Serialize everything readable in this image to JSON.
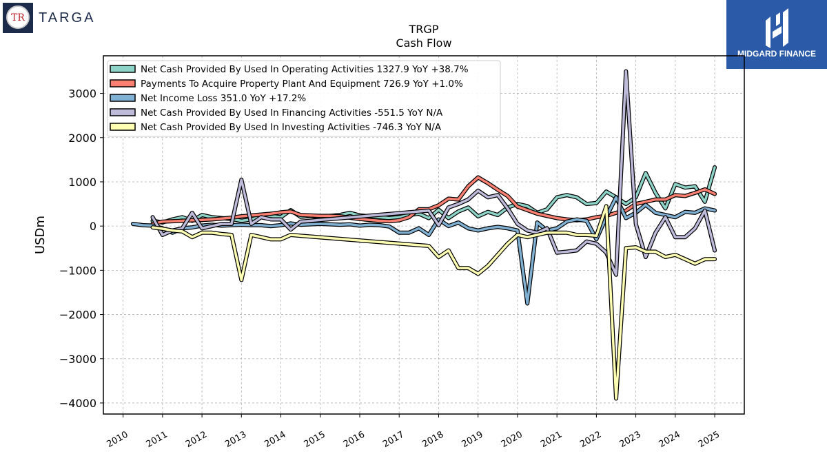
{
  "brand_left": {
    "name": "TARGA",
    "monogram": "TR"
  },
  "brand_right": {
    "name": "MIDGARD FINANCE"
  },
  "chart_data": {
    "type": "line",
    "title": "TRGP",
    "subtitle": "Cash Flow",
    "ylabel": "USDm",
    "xlabel": "",
    "xlim": [
      2009.5,
      2025.75
    ],
    "ylim": [
      -4250,
      3850
    ],
    "yticks": [
      -4000,
      -3000,
      -2000,
      -1000,
      0,
      1000,
      2000,
      3000
    ],
    "ytick_labels": [
      "−4000",
      "−3000",
      "−2000",
      "−1000",
      "0",
      "1000",
      "2000",
      "3000"
    ],
    "xticks": [
      2010,
      2011,
      2012,
      2013,
      2014,
      2015,
      2016,
      2017,
      2018,
      2019,
      2020,
      2021,
      2022,
      2023,
      2024,
      2025
    ],
    "xtick_labels": [
      "2010",
      "2011",
      "2012",
      "2013",
      "2014",
      "2015",
      "2016",
      "2017",
      "2018",
      "2019",
      "2020",
      "2021",
      "2022",
      "2023",
      "2024",
      "2025"
    ],
    "grid": true,
    "legend_position": "top-left",
    "series": [
      {
        "name": "Net Cash Provided By Used In Operating Activities",
        "legend": "Net Cash Provided By Used In Operating Activities  1327.9 YoY +38.7%",
        "color": "#8dd3c7",
        "points": [
          [
            2010.75,
            120
          ],
          [
            2011.0,
            80
          ],
          [
            2011.25,
            150
          ],
          [
            2011.5,
            200
          ],
          [
            2011.75,
            120
          ],
          [
            2012.0,
            250
          ],
          [
            2012.25,
            200
          ],
          [
            2012.5,
            180
          ],
          [
            2012.75,
            160
          ],
          [
            2013.0,
            120
          ],
          [
            2013.25,
            150
          ],
          [
            2013.5,
            210
          ],
          [
            2013.75,
            230
          ],
          [
            2014.0,
            200
          ],
          [
            2014.25,
            360
          ],
          [
            2014.5,
            210
          ],
          [
            2014.75,
            230
          ],
          [
            2015.0,
            200
          ],
          [
            2015.25,
            230
          ],
          [
            2015.5,
            250
          ],
          [
            2015.75,
            300
          ],
          [
            2016.0,
            240
          ],
          [
            2016.25,
            220
          ],
          [
            2016.5,
            200
          ],
          [
            2016.75,
            180
          ],
          [
            2017.0,
            200
          ],
          [
            2017.25,
            250
          ],
          [
            2017.5,
            280
          ],
          [
            2017.75,
            180
          ],
          [
            2018.0,
            370
          ],
          [
            2018.25,
            180
          ],
          [
            2018.5,
            330
          ],
          [
            2018.75,
            420
          ],
          [
            2019.0,
            220
          ],
          [
            2019.25,
            320
          ],
          [
            2019.5,
            250
          ],
          [
            2019.75,
            420
          ],
          [
            2020.0,
            500
          ],
          [
            2020.25,
            450
          ],
          [
            2020.5,
            300
          ],
          [
            2020.75,
            380
          ],
          [
            2021.0,
            650
          ],
          [
            2021.25,
            700
          ],
          [
            2021.5,
            650
          ],
          [
            2021.75,
            500
          ],
          [
            2022.0,
            520
          ],
          [
            2022.25,
            780
          ],
          [
            2022.5,
            650
          ],
          [
            2022.75,
            500
          ],
          [
            2023.0,
            650
          ],
          [
            2023.25,
            1200
          ],
          [
            2023.5,
            750
          ],
          [
            2023.75,
            400
          ],
          [
            2024.0,
            950
          ],
          [
            2024.25,
            870
          ],
          [
            2024.5,
            900
          ],
          [
            2024.75,
            550
          ],
          [
            2025.0,
            1328
          ]
        ]
      },
      {
        "name": "Payments To Acquire Property Plant And Equipment",
        "legend": "Payments To Acquire Property Plant And Equipment  726.9 YoY +1.0%",
        "color": "#fb8072",
        "points": [
          [
            2010.75,
            50
          ],
          [
            2011.0,
            100
          ],
          [
            2011.25,
            110
          ],
          [
            2011.5,
            120
          ],
          [
            2011.75,
            130
          ],
          [
            2012.0,
            140
          ],
          [
            2012.25,
            150
          ],
          [
            2012.5,
            170
          ],
          [
            2012.75,
            190
          ],
          [
            2013.0,
            220
          ],
          [
            2013.25,
            240
          ],
          [
            2013.5,
            260
          ],
          [
            2013.75,
            280
          ],
          [
            2014.0,
            310
          ],
          [
            2014.25,
            330
          ],
          [
            2014.5,
            250
          ],
          [
            2014.75,
            240
          ],
          [
            2015.0,
            230
          ],
          [
            2015.25,
            230
          ],
          [
            2015.5,
            220
          ],
          [
            2015.75,
            190
          ],
          [
            2016.0,
            160
          ],
          [
            2016.25,
            140
          ],
          [
            2016.5,
            120
          ],
          [
            2016.75,
            110
          ],
          [
            2017.0,
            130
          ],
          [
            2017.25,
            200
          ],
          [
            2017.5,
            380
          ],
          [
            2017.75,
            380
          ],
          [
            2018.0,
            470
          ],
          [
            2018.25,
            620
          ],
          [
            2018.5,
            600
          ],
          [
            2018.75,
            900
          ],
          [
            2019.0,
            1100
          ],
          [
            2019.25,
            970
          ],
          [
            2019.5,
            820
          ],
          [
            2019.75,
            680
          ],
          [
            2020.0,
            440
          ],
          [
            2020.25,
            360
          ],
          [
            2020.5,
            280
          ],
          [
            2020.75,
            230
          ],
          [
            2021.0,
            180
          ],
          [
            2021.25,
            150
          ],
          [
            2021.5,
            130
          ],
          [
            2021.75,
            150
          ],
          [
            2022.0,
            200
          ],
          [
            2022.25,
            230
          ],
          [
            2022.5,
            300
          ],
          [
            2022.75,
            350
          ],
          [
            2023.0,
            500
          ],
          [
            2023.25,
            550
          ],
          [
            2023.5,
            600
          ],
          [
            2023.75,
            600
          ],
          [
            2024.0,
            700
          ],
          [
            2024.25,
            680
          ],
          [
            2024.5,
            750
          ],
          [
            2024.75,
            830
          ],
          [
            2025.0,
            727
          ]
        ]
      },
      {
        "name": "Net Income Loss",
        "legend": "Net Income Loss  351.0 YoY +17.2%",
        "color": "#80b1d3",
        "points": [
          [
            2010.25,
            50
          ],
          [
            2010.5,
            20
          ],
          [
            2010.75,
            10
          ],
          [
            2011.0,
            -50
          ],
          [
            2011.25,
            -150
          ],
          [
            2011.5,
            -50
          ],
          [
            2011.75,
            -30
          ],
          [
            2012.0,
            10
          ],
          [
            2012.25,
            30
          ],
          [
            2012.5,
            10
          ],
          [
            2012.75,
            20
          ],
          [
            2013.0,
            30
          ],
          [
            2013.25,
            20
          ],
          [
            2013.5,
            20
          ],
          [
            2013.75,
            0
          ],
          [
            2014.0,
            20
          ],
          [
            2014.25,
            60
          ],
          [
            2014.5,
            30
          ],
          [
            2014.75,
            40
          ],
          [
            2015.0,
            50
          ],
          [
            2015.25,
            40
          ],
          [
            2015.5,
            30
          ],
          [
            2015.75,
            40
          ],
          [
            2016.0,
            10
          ],
          [
            2016.25,
            30
          ],
          [
            2016.5,
            20
          ],
          [
            2016.75,
            -10
          ],
          [
            2017.0,
            -150
          ],
          [
            2017.25,
            -150
          ],
          [
            2017.5,
            -50
          ],
          [
            2017.75,
            -200
          ],
          [
            2018.0,
            150
          ],
          [
            2018.25,
            0
          ],
          [
            2018.5,
            80
          ],
          [
            2018.75,
            -50
          ],
          [
            2019.0,
            -100
          ],
          [
            2019.25,
            -50
          ],
          [
            2019.5,
            -20
          ],
          [
            2019.75,
            -50
          ],
          [
            2020.0,
            -100
          ],
          [
            2020.25,
            -1750
          ],
          [
            2020.5,
            80
          ],
          [
            2020.75,
            -100
          ],
          [
            2021.0,
            -50
          ],
          [
            2021.25,
            100
          ],
          [
            2021.5,
            150
          ],
          [
            2021.75,
            120
          ],
          [
            2022.0,
            -300
          ],
          [
            2022.25,
            200
          ],
          [
            2022.5,
            650
          ],
          [
            2022.75,
            180
          ],
          [
            2023.0,
            300
          ],
          [
            2023.25,
            480
          ],
          [
            2023.5,
            300
          ],
          [
            2023.75,
            250
          ],
          [
            2024.0,
            200
          ],
          [
            2024.25,
            320
          ],
          [
            2024.5,
            300
          ],
          [
            2024.75,
            400
          ],
          [
            2025.0,
            351
          ]
        ]
      },
      {
        "name": "Net Cash Provided By Used In Financing Activities",
        "legend": "Net Cash Provided By Used In Financing Activities  -551.5 YoY N/A",
        "color": "#bebada",
        "points": [
          [
            2010.75,
            200
          ],
          [
            2011.0,
            -200
          ],
          [
            2011.25,
            -100
          ],
          [
            2011.5,
            -50
          ],
          [
            2011.75,
            300
          ],
          [
            2012.0,
            -50
          ],
          [
            2012.25,
            0
          ],
          [
            2012.5,
            50
          ],
          [
            2012.75,
            50
          ],
          [
            2013.0,
            1050
          ],
          [
            2013.25,
            50
          ],
          [
            2013.5,
            200
          ],
          [
            2013.75,
            150
          ],
          [
            2014.0,
            150
          ],
          [
            2014.25,
            -80
          ],
          [
            2014.5,
            100
          ],
          [
            2014.75,
            120
          ],
          [
            2017.75,
            350
          ],
          [
            2018.0,
            20
          ],
          [
            2018.25,
            420
          ],
          [
            2018.5,
            500
          ],
          [
            2018.75,
            600
          ],
          [
            2019.0,
            800
          ],
          [
            2019.25,
            650
          ],
          [
            2019.5,
            700
          ],
          [
            2019.75,
            400
          ],
          [
            2020.0,
            50
          ],
          [
            2020.25,
            -100
          ],
          [
            2020.5,
            -150
          ],
          [
            2020.75,
            -50
          ],
          [
            2021.0,
            -600
          ],
          [
            2021.25,
            -580
          ],
          [
            2021.5,
            -550
          ],
          [
            2021.75,
            -350
          ],
          [
            2022.0,
            -400
          ],
          [
            2022.25,
            -600
          ],
          [
            2022.5,
            -1100
          ],
          [
            2022.75,
            3500
          ],
          [
            2023.0,
            50
          ],
          [
            2023.25,
            -700
          ],
          [
            2023.5,
            -150
          ],
          [
            2023.75,
            200
          ],
          [
            2024.0,
            -250
          ],
          [
            2024.25,
            -250
          ],
          [
            2024.5,
            -50
          ],
          [
            2024.75,
            350
          ],
          [
            2025.0,
            -552
          ]
        ]
      },
      {
        "name": "Net Cash Provided By Used In Investing Activities",
        "legend": "Net Cash Provided By Used In Investing Activities  -746.3 YoY N/A",
        "color": "#ffffb3",
        "points": [
          [
            2010.75,
            -30
          ],
          [
            2011.0,
            -60
          ],
          [
            2011.25,
            -100
          ],
          [
            2011.5,
            -120
          ],
          [
            2011.75,
            -250
          ],
          [
            2012.0,
            -150
          ],
          [
            2012.25,
            -150
          ],
          [
            2012.5,
            -180
          ],
          [
            2012.75,
            -200
          ],
          [
            2013.0,
            -1220
          ],
          [
            2013.25,
            -200
          ],
          [
            2013.5,
            -250
          ],
          [
            2013.75,
            -300
          ],
          [
            2014.0,
            -300
          ],
          [
            2014.25,
            -200
          ],
          [
            2014.5,
            -220
          ],
          [
            2017.75,
            -450
          ],
          [
            2018.0,
            -700
          ],
          [
            2018.25,
            -550
          ],
          [
            2018.5,
            -950
          ],
          [
            2018.75,
            -950
          ],
          [
            2019.0,
            -1080
          ],
          [
            2019.25,
            -900
          ],
          [
            2019.5,
            -650
          ],
          [
            2019.75,
            -400
          ],
          [
            2020.0,
            -200
          ],
          [
            2020.25,
            -250
          ],
          [
            2020.5,
            -200
          ],
          [
            2020.75,
            -150
          ],
          [
            2021.0,
            -150
          ],
          [
            2021.25,
            -150
          ],
          [
            2021.5,
            -200
          ],
          [
            2021.75,
            -200
          ],
          [
            2022.0,
            -220
          ],
          [
            2022.25,
            450
          ],
          [
            2022.5,
            -3900
          ],
          [
            2022.75,
            -500
          ],
          [
            2023.0,
            -480
          ],
          [
            2023.25,
            -580
          ],
          [
            2023.5,
            -580
          ],
          [
            2023.75,
            -700
          ],
          [
            2024.0,
            -650
          ],
          [
            2024.25,
            -750
          ],
          [
            2024.5,
            -850
          ],
          [
            2024.75,
            -750
          ],
          [
            2025.0,
            -746
          ]
        ]
      }
    ]
  }
}
